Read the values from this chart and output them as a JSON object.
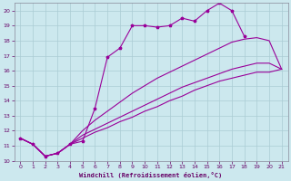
{
  "xlabel": "Windchill (Refroidissement éolien,°C)",
  "bg_color": "#cce8ee",
  "line_color": "#990099",
  "grid_color": "#aaccd4",
  "xlim": [
    -0.5,
    21.5
  ],
  "ylim": [
    10.0,
    20.5
  ],
  "yticks": [
    10,
    11,
    12,
    13,
    14,
    15,
    16,
    17,
    18,
    19,
    20
  ],
  "xticks": [
    0,
    1,
    2,
    3,
    4,
    5,
    6,
    7,
    8,
    9,
    10,
    11,
    12,
    13,
    14,
    15,
    16,
    17,
    18,
    19,
    20,
    21
  ],
  "line1_x": [
    0,
    1,
    2,
    3,
    4,
    5,
    6,
    7,
    8,
    9,
    10,
    11,
    12,
    13,
    14,
    15,
    16,
    17,
    18
  ],
  "line1_y": [
    11.5,
    11.1,
    10.3,
    10.5,
    11.1,
    11.3,
    13.5,
    16.9,
    17.5,
    19.0,
    19.0,
    18.9,
    19.0,
    19.5,
    19.3,
    20.0,
    20.5,
    20.0,
    18.3
  ],
  "line2_x": [
    0,
    1,
    2,
    3,
    4,
    5,
    6,
    7,
    8,
    9,
    10,
    11,
    12,
    13,
    14,
    15,
    16,
    17,
    18,
    19,
    20,
    21
  ],
  "line2_y": [
    11.5,
    11.1,
    10.3,
    10.5,
    11.1,
    12.0,
    12.7,
    13.3,
    13.9,
    14.5,
    15.0,
    15.5,
    15.9,
    16.3,
    16.7,
    17.1,
    17.5,
    17.9,
    18.1,
    18.2,
    18.0,
    16.1
  ],
  "line3_x": [
    0,
    1,
    2,
    3,
    4,
    5,
    6,
    7,
    8,
    9,
    10,
    11,
    12,
    13,
    14,
    15,
    16,
    17,
    18,
    19,
    20,
    21
  ],
  "line3_y": [
    11.5,
    11.1,
    10.3,
    10.5,
    11.1,
    11.7,
    12.1,
    12.5,
    12.9,
    13.3,
    13.7,
    14.1,
    14.5,
    14.9,
    15.2,
    15.5,
    15.8,
    16.1,
    16.3,
    16.5,
    16.5,
    16.1
  ],
  "line4_x": [
    0,
    1,
    2,
    3,
    4,
    5,
    6,
    7,
    8,
    9,
    10,
    11,
    12,
    13,
    14,
    15,
    16,
    17,
    18,
    19,
    20,
    21
  ],
  "line4_y": [
    11.5,
    11.1,
    10.3,
    10.5,
    11.1,
    11.5,
    11.9,
    12.2,
    12.6,
    12.9,
    13.3,
    13.6,
    14.0,
    14.3,
    14.7,
    15.0,
    15.3,
    15.5,
    15.7,
    15.9,
    15.9,
    16.1
  ]
}
